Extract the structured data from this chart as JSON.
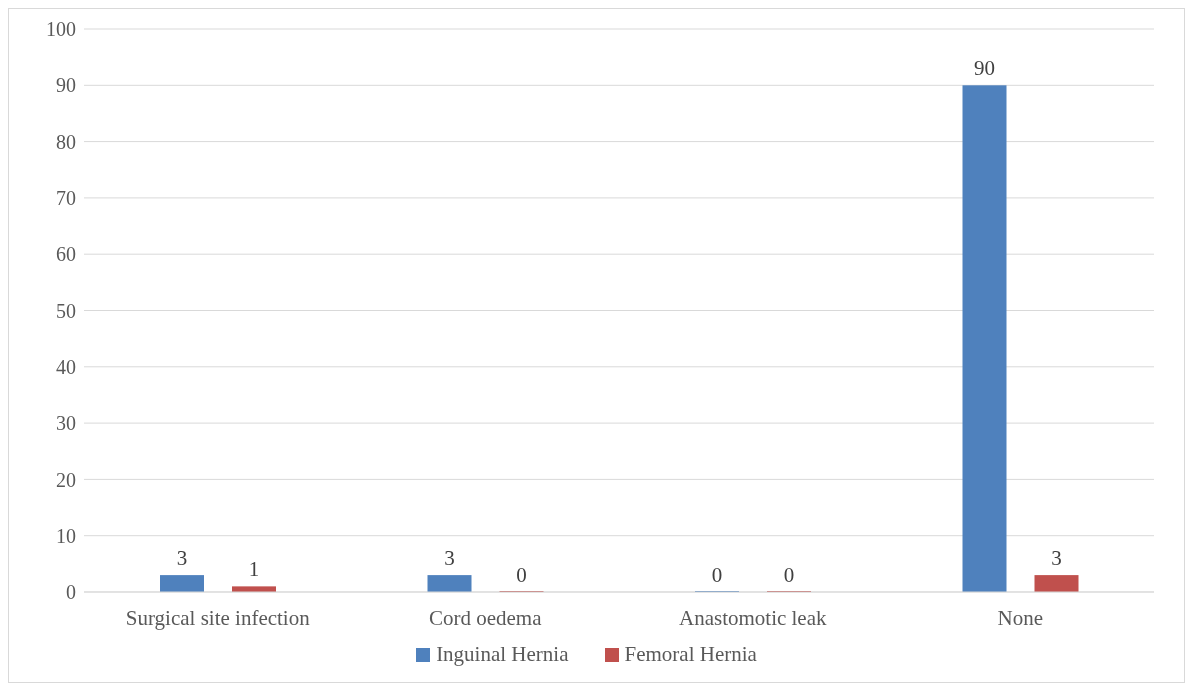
{
  "chart_data": {
    "type": "bar",
    "categories": [
      "Surgical site infection",
      "Cord oedema",
      "Anastomotic leak",
      "None"
    ],
    "series": [
      {
        "name": "Inguinal Hernia",
        "color": "#4f81bd",
        "values": [
          3,
          3,
          0,
          90
        ]
      },
      {
        "name": "Femoral Hernia",
        "color": "#c0504d",
        "values": [
          1,
          0,
          0,
          3
        ]
      }
    ],
    "ylim": [
      0,
      100
    ],
    "yticks": [
      0,
      10,
      20,
      30,
      40,
      50,
      60,
      70,
      80,
      90,
      100
    ],
    "grid": "y",
    "legend": "bottom",
    "data_labels": true
  }
}
